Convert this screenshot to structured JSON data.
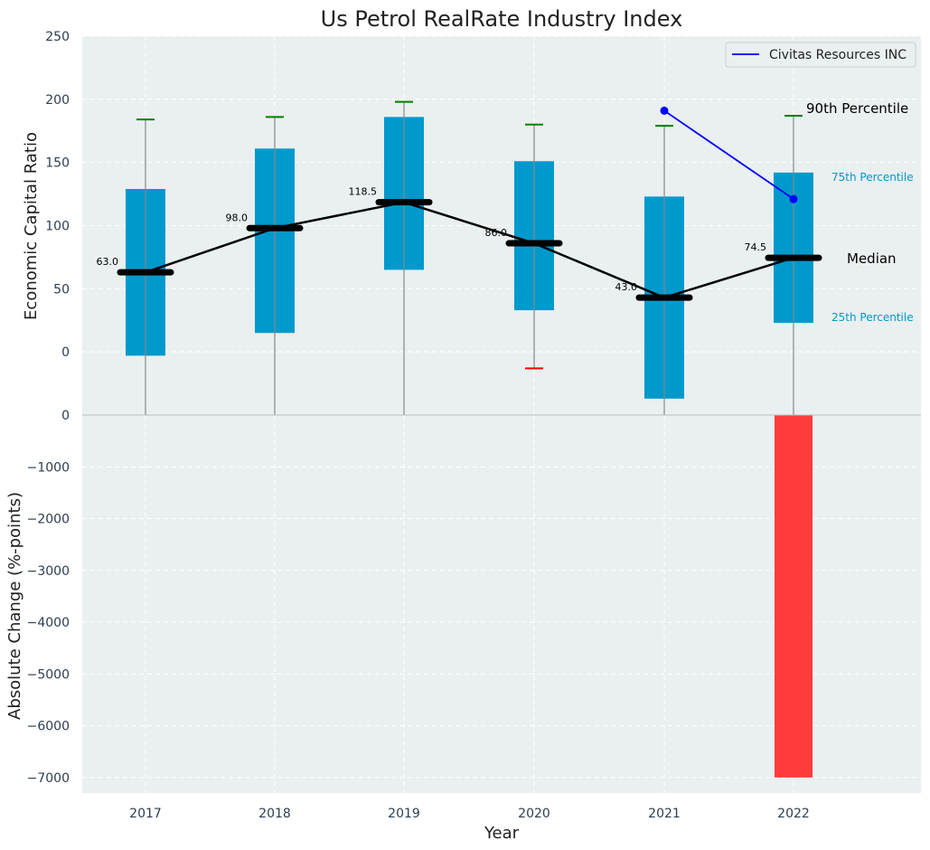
{
  "colors": {
    "plot_bg": "#eaeff0",
    "box": "#0099cc",
    "median": "#000000",
    "whisker": "#888888",
    "cap_high": "#008000",
    "cap_low": "#ff0000",
    "company": "#0000ff",
    "change_bar": "#ff3b3b",
    "grid": "#ffffff"
  },
  "chart_data": [
    {
      "type": "box",
      "title": "Us Petrol RealRate Industry Index",
      "ylabel": "Economic Capital Ratio",
      "xlabel": "",
      "ylim": [
        -50,
        250
      ],
      "yticks": [
        0,
        50,
        100,
        150,
        200,
        250
      ],
      "categories": [
        "2017",
        "2018",
        "2019",
        "2020",
        "2021",
        "2022"
      ],
      "boxes": [
        {
          "year": "2017",
          "whisker_low": -50,
          "q1": -3,
          "median": 63.0,
          "q3": 129,
          "whisker_high": 184,
          "median_label": "63.0"
        },
        {
          "year": "2018",
          "whisker_low": -50,
          "q1": 15,
          "median": 98.0,
          "q3": 161,
          "whisker_high": 186,
          "median_label": "98.0"
        },
        {
          "year": "2019",
          "whisker_low": -50,
          "q1": 65,
          "median": 118.5,
          "q3": 186,
          "whisker_high": 198,
          "median_label": "118.5"
        },
        {
          "year": "2020",
          "whisker_low": -13,
          "q1": 33,
          "median": 86.0,
          "q3": 151,
          "whisker_high": 180,
          "median_label": "86.0"
        },
        {
          "year": "2021",
          "whisker_low": -50,
          "q1": -37,
          "median": 43.0,
          "q3": 123,
          "whisker_high": 179,
          "median_label": "43.0"
        },
        {
          "year": "2022",
          "whisker_low": -50,
          "q1": 23,
          "median": 74.5,
          "q3": 142,
          "whisker_high": 187,
          "median_label": "74.5"
        }
      ],
      "series": [
        {
          "name": "Civitas Resources INC",
          "x": [
            "2021",
            "2022"
          ],
          "values": [
            191,
            121
          ]
        }
      ],
      "legend": {
        "position": "top-right",
        "entries": [
          "Civitas Resources INC"
        ]
      },
      "annotations": [
        "90th Percentile",
        "75th Percentile",
        "Median",
        "25th Percentile"
      ]
    },
    {
      "type": "bar",
      "title": "",
      "xlabel": "Year",
      "ylabel": "Absolute Change (%-points)",
      "ylim": [
        -7300,
        0
      ],
      "yticks": [
        0,
        -1000,
        -2000,
        -3000,
        -4000,
        -5000,
        -6000,
        -7000
      ],
      "categories": [
        "2017",
        "2018",
        "2019",
        "2020",
        "2021",
        "2022"
      ],
      "values": [
        0,
        0,
        0,
        0,
        0,
        -7000
      ]
    }
  ]
}
